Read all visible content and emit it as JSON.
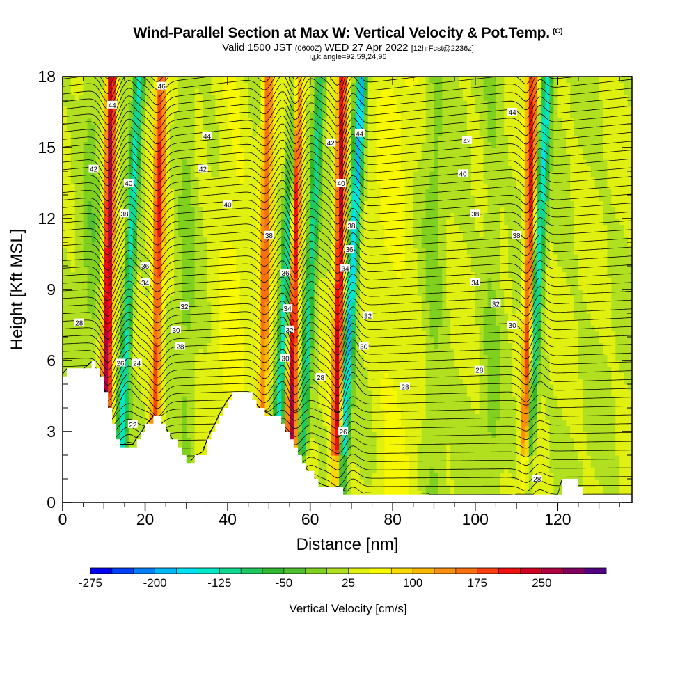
{
  "title": "Wind-Parallel Section at Max W: Vertical Velocity & Pot.Temp.",
  "title_mark": "(C)",
  "subtitle_main": "Valid 1500 JST",
  "subtitle_utc": "(0600Z)",
  "subtitle_date": "WED 27 Apr 2022",
  "subtitle_fcst": "[12hrFcst@2236z]",
  "info_line": "i,j,k,angle=92,59,24,96",
  "colors": {
    "bands": [
      "#0000f0",
      "#0040f8",
      "#0080f8",
      "#00b8f8",
      "#00e0f0",
      "#00e8c8",
      "#10d890",
      "#20c860",
      "#30b830",
      "#50c030",
      "#80d020",
      "#b0e020",
      "#e0f010",
      "#f8f800",
      "#f8d800",
      "#f8b800",
      "#f89010",
      "#f87010",
      "#f84010",
      "#f01010",
      "#d00020",
      "#b00040",
      "#800060",
      "#500080"
    ],
    "terrain": "#ffffff"
  },
  "chart_data": {
    "type": "heatmap",
    "xlabel": "Distance [nm]",
    "ylabel": "Height [Kft MSL]",
    "xlim": [
      0,
      138
    ],
    "ylim": [
      0,
      18
    ],
    "x_ticks": [
      "0",
      "20",
      "40",
      "60",
      "80",
      "100",
      "120"
    ],
    "y_ticks": [
      "0",
      "3",
      "6",
      "9",
      "12",
      "15",
      "18"
    ],
    "colorbar": {
      "title": "Vertical Velocity [cm/s]",
      "range": [
        -275,
        325
      ],
      "tick_labels": [
        "-275",
        "-200",
        "-125",
        "-50",
        "25",
        "100",
        "175",
        "250"
      ]
    },
    "updrafts": [
      {
        "x": 11,
        "strength": 240
      },
      {
        "x": 23,
        "strength": 170
      },
      {
        "x": 49,
        "strength": 140
      },
      {
        "x": 56,
        "strength": 220
      },
      {
        "x": 67,
        "strength": 210
      },
      {
        "x": 113,
        "strength": 180
      }
    ],
    "downdrafts": [
      {
        "x": 16,
        "strength": -160
      },
      {
        "x": 54,
        "strength": -170
      },
      {
        "x": 60,
        "strength": -130
      },
      {
        "x": 70,
        "strength": -210
      },
      {
        "x": 115,
        "strength": -170
      }
    ],
    "theta_contour_labels": [
      {
        "value": "44",
        "x": 12,
        "y": 16.8
      },
      {
        "value": "46",
        "x": 24,
        "y": 17.6
      },
      {
        "value": "44",
        "x": 35,
        "y": 15.5
      },
      {
        "value": "42",
        "x": 7.5,
        "y": 14.1
      },
      {
        "value": "40",
        "x": 16,
        "y": 13.5
      },
      {
        "value": "42",
        "x": 34,
        "y": 14.1
      },
      {
        "value": "40",
        "x": 40,
        "y": 12.6
      },
      {
        "value": "38",
        "x": 15,
        "y": 12.2
      },
      {
        "value": "36",
        "x": 20,
        "y": 10.0
      },
      {
        "value": "34",
        "x": 20,
        "y": 9.3
      },
      {
        "value": "32",
        "x": 29.5,
        "y": 8.3
      },
      {
        "value": "30",
        "x": 27.5,
        "y": 7.3
      },
      {
        "value": "28",
        "x": 28.5,
        "y": 6.6
      },
      {
        "value": "28",
        "x": 4,
        "y": 7.6
      },
      {
        "value": "26",
        "x": 14,
        "y": 5.9
      },
      {
        "value": "24",
        "x": 18,
        "y": 5.9
      },
      {
        "value": "22",
        "x": 17,
        "y": 3.3
      },
      {
        "value": "38",
        "x": 50,
        "y": 11.3
      },
      {
        "value": "36",
        "x": 54,
        "y": 9.7
      },
      {
        "value": "34",
        "x": 54.5,
        "y": 8.2
      },
      {
        "value": "32",
        "x": 55,
        "y": 7.3
      },
      {
        "value": "30",
        "x": 54,
        "y": 6.1
      },
      {
        "value": "42",
        "x": 65,
        "y": 15.2
      },
      {
        "value": "44",
        "x": 72,
        "y": 15.6
      },
      {
        "value": "40",
        "x": 67.5,
        "y": 13.5
      },
      {
        "value": "38",
        "x": 70,
        "y": 11.7
      },
      {
        "value": "36",
        "x": 69.5,
        "y": 10.7
      },
      {
        "value": "34",
        "x": 68.5,
        "y": 9.9
      },
      {
        "value": "32",
        "x": 74,
        "y": 7.9
      },
      {
        "value": "30",
        "x": 73,
        "y": 6.6
      },
      {
        "value": "28",
        "x": 62.5,
        "y": 5.3
      },
      {
        "value": "26",
        "x": 68,
        "y": 3.0
      },
      {
        "value": "28",
        "x": 83,
        "y": 4.9
      },
      {
        "value": "44",
        "x": 109,
        "y": 16.5
      },
      {
        "value": "42",
        "x": 98,
        "y": 15.3
      },
      {
        "value": "40",
        "x": 97,
        "y": 13.9
      },
      {
        "value": "38",
        "x": 100,
        "y": 12.2
      },
      {
        "value": "38",
        "x": 110,
        "y": 11.3
      },
      {
        "value": "34",
        "x": 100,
        "y": 9.3
      },
      {
        "value": "32",
        "x": 105,
        "y": 8.4
      },
      {
        "value": "30",
        "x": 109,
        "y": 7.5
      },
      {
        "value": "28",
        "x": 101,
        "y": 5.6
      },
      {
        "value": "28",
        "x": 115,
        "y": 1.0
      }
    ]
  }
}
